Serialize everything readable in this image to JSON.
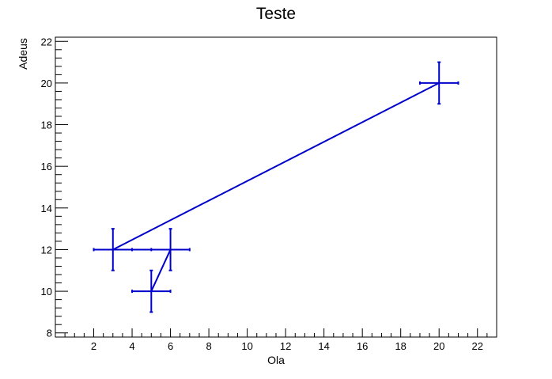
{
  "chart_data": {
    "type": "scatter",
    "title": "Teste",
    "xlabel": "Ola",
    "ylabel": "Adeus",
    "xlim": [
      0,
      23
    ],
    "ylim": [
      7.8,
      22.2
    ],
    "x_ticks": [
      2,
      4,
      6,
      8,
      10,
      12,
      14,
      16,
      18,
      20,
      22
    ],
    "y_ticks": [
      8,
      10,
      12,
      14,
      16,
      18,
      20,
      22
    ],
    "grid": false,
    "line_color": "#0000cc",
    "series": [
      {
        "points": [
          {
            "x": 5,
            "y": 10,
            "ex": 1,
            "ey": 1
          },
          {
            "x": 6,
            "y": 12,
            "ex": 1,
            "ey": 1
          },
          {
            "x": 3,
            "y": 12,
            "ex": 1,
            "ey": 1
          },
          {
            "x": 20,
            "y": 20,
            "ex": 1,
            "ey": 1
          }
        ]
      }
    ]
  }
}
